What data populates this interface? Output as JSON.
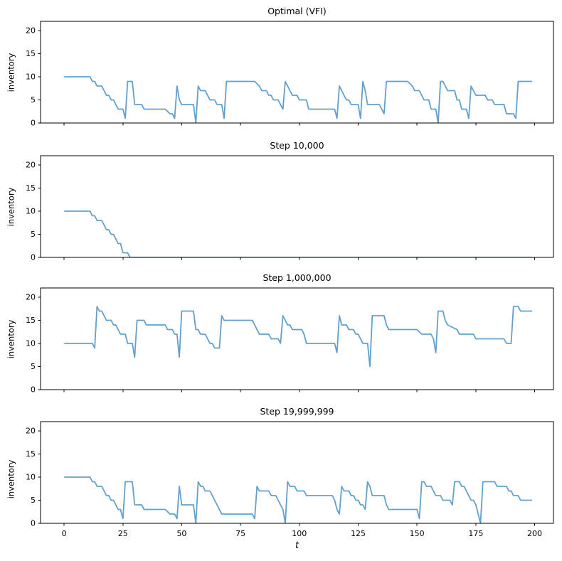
{
  "figure": {
    "background": "#ffffff",
    "line_color": "#62a0cb",
    "spine_color": "#000000",
    "text_color": "#000000",
    "ylabel": "inventory",
    "xlabel": "t"
  },
  "chart_data": [
    {
      "type": "line",
      "title": "Optimal (VFI)",
      "xlabel": "t",
      "ylabel": "inventory",
      "xlim": [
        -10,
        208
      ],
      "ylim": [
        0,
        22
      ],
      "xticks": [
        0,
        25,
        50,
        75,
        100,
        125,
        150,
        175,
        200
      ],
      "yticks": [
        0,
        5,
        10,
        15,
        20
      ],
      "x_tick_labels_visible": false,
      "points": [
        [
          0,
          10
        ],
        [
          11,
          10
        ],
        [
          12,
          9
        ],
        [
          13,
          9
        ],
        [
          14,
          8
        ],
        [
          16,
          8
        ],
        [
          17,
          7
        ],
        [
          18,
          6
        ],
        [
          19,
          6
        ],
        [
          20,
          5
        ],
        [
          21,
          5
        ],
        [
          22,
          4
        ],
        [
          23,
          3
        ],
        [
          25,
          3
        ],
        [
          26,
          1
        ],
        [
          27,
          9
        ],
        [
          29,
          9
        ],
        [
          30,
          4
        ],
        [
          33,
          4
        ],
        [
          34,
          3
        ],
        [
          43,
          3
        ],
        [
          45,
          2
        ],
        [
          46,
          2
        ],
        [
          47,
          1
        ],
        [
          48,
          8
        ],
        [
          49,
          5
        ],
        [
          50,
          4
        ],
        [
          55,
          4
        ],
        [
          56,
          0
        ],
        [
          57,
          8
        ],
        [
          58,
          7
        ],
        [
          60,
          7
        ],
        [
          61,
          6
        ],
        [
          62,
          5
        ],
        [
          64,
          5
        ],
        [
          65,
          4
        ],
        [
          67,
          4
        ],
        [
          68,
          1
        ],
        [
          69,
          9
        ],
        [
          81,
          9
        ],
        [
          83,
          8
        ],
        [
          84,
          7
        ],
        [
          86,
          7
        ],
        [
          87,
          6
        ],
        [
          88,
          6
        ],
        [
          89,
          5
        ],
        [
          91,
          5
        ],
        [
          92,
          4
        ],
        [
          93,
          3
        ],
        [
          94,
          9
        ],
        [
          95,
          8
        ],
        [
          96,
          7
        ],
        [
          97,
          6
        ],
        [
          99,
          6
        ],
        [
          100,
          5
        ],
        [
          103,
          5
        ],
        [
          104,
          3
        ],
        [
          115,
          3
        ],
        [
          116,
          1
        ],
        [
          117,
          8
        ],
        [
          118,
          7
        ],
        [
          119,
          6
        ],
        [
          120,
          5
        ],
        [
          121,
          5
        ],
        [
          122,
          4
        ],
        [
          125,
          4
        ],
        [
          126,
          1
        ],
        [
          127,
          9
        ],
        [
          128,
          7
        ],
        [
          129,
          4
        ],
        [
          134,
          4
        ],
        [
          135,
          3
        ],
        [
          136,
          2
        ],
        [
          137,
          9
        ],
        [
          146,
          9
        ],
        [
          148,
          8
        ],
        [
          149,
          7
        ],
        [
          151,
          7
        ],
        [
          152,
          6
        ],
        [
          153,
          5
        ],
        [
          155,
          5
        ],
        [
          156,
          3
        ],
        [
          158,
          3
        ],
        [
          159,
          0
        ],
        [
          160,
          9
        ],
        [
          161,
          9
        ],
        [
          162,
          8
        ],
        [
          163,
          7
        ],
        [
          166,
          7
        ],
        [
          167,
          5
        ],
        [
          168,
          5
        ],
        [
          169,
          3
        ],
        [
          171,
          3
        ],
        [
          172,
          1
        ],
        [
          173,
          8
        ],
        [
          174,
          7
        ],
        [
          175,
          6
        ],
        [
          179,
          6
        ],
        [
          180,
          5
        ],
        [
          182,
          5
        ],
        [
          183,
          4
        ],
        [
          187,
          4
        ],
        [
          188,
          2
        ],
        [
          191,
          2
        ],
        [
          192,
          1
        ],
        [
          193,
          9
        ],
        [
          199,
          9
        ]
      ]
    },
    {
      "type": "line",
      "title": "Step 10,000",
      "xlabel": "t",
      "ylabel": "inventory",
      "xlim": [
        -10,
        208
      ],
      "ylim": [
        0,
        22
      ],
      "xticks": [
        0,
        25,
        50,
        75,
        100,
        125,
        150,
        175,
        200
      ],
      "yticks": [
        0,
        5,
        10,
        15,
        20
      ],
      "x_tick_labels_visible": false,
      "points": [
        [
          0,
          10
        ],
        [
          11,
          10
        ],
        [
          12,
          9
        ],
        [
          13,
          9
        ],
        [
          14,
          8
        ],
        [
          16,
          8
        ],
        [
          17,
          7
        ],
        [
          18,
          6
        ],
        [
          19,
          6
        ],
        [
          20,
          5
        ],
        [
          21,
          5
        ],
        [
          22,
          4
        ],
        [
          23,
          3
        ],
        [
          24,
          3
        ],
        [
          25,
          1
        ],
        [
          27,
          1
        ],
        [
          28,
          0
        ],
        [
          199,
          0
        ]
      ]
    },
    {
      "type": "line",
      "title": "Step 1,000,000",
      "xlabel": "t",
      "ylabel": "inventory",
      "xlim": [
        -10,
        208
      ],
      "ylim": [
        0,
        22
      ],
      "xticks": [
        0,
        25,
        50,
        75,
        100,
        125,
        150,
        175,
        200
      ],
      "yticks": [
        0,
        5,
        10,
        15,
        20
      ],
      "x_tick_labels_visible": false,
      "points": [
        [
          0,
          10
        ],
        [
          12,
          10
        ],
        [
          13,
          9
        ],
        [
          14,
          18
        ],
        [
          15,
          17
        ],
        [
          16,
          17
        ],
        [
          17,
          16
        ],
        [
          18,
          15
        ],
        [
          20,
          15
        ],
        [
          21,
          14
        ],
        [
          22,
          14
        ],
        [
          23,
          13
        ],
        [
          24,
          12
        ],
        [
          26,
          12
        ],
        [
          27,
          10
        ],
        [
          29,
          10
        ],
        [
          30,
          7
        ],
        [
          31,
          15
        ],
        [
          34,
          15
        ],
        [
          35,
          14
        ],
        [
          43,
          14
        ],
        [
          44,
          13
        ],
        [
          46,
          13
        ],
        [
          47,
          12
        ],
        [
          48,
          12
        ],
        [
          49,
          7
        ],
        [
          50,
          17
        ],
        [
          55,
          17
        ],
        [
          56,
          13
        ],
        [
          57,
          13
        ],
        [
          58,
          12
        ],
        [
          60,
          12
        ],
        [
          61,
          11
        ],
        [
          62,
          10
        ],
        [
          63,
          10
        ],
        [
          64,
          9
        ],
        [
          66,
          9
        ],
        [
          67,
          16
        ],
        [
          68,
          15
        ],
        [
          80,
          15
        ],
        [
          81,
          14
        ],
        [
          82,
          13
        ],
        [
          83,
          12
        ],
        [
          87,
          12
        ],
        [
          88,
          11
        ],
        [
          91,
          11
        ],
        [
          92,
          10
        ],
        [
          93,
          16
        ],
        [
          94,
          15
        ],
        [
          95,
          14
        ],
        [
          96,
          14
        ],
        [
          97,
          13
        ],
        [
          101,
          13
        ],
        [
          102,
          12
        ],
        [
          103,
          10
        ],
        [
          115,
          10
        ],
        [
          116,
          8
        ],
        [
          117,
          16
        ],
        [
          118,
          14
        ],
        [
          120,
          14
        ],
        [
          121,
          13
        ],
        [
          123,
          13
        ],
        [
          124,
          12
        ],
        [
          125,
          12
        ],
        [
          126,
          11
        ],
        [
          127,
          10
        ],
        [
          129,
          10
        ],
        [
          130,
          5
        ],
        [
          131,
          16
        ],
        [
          136,
          16
        ],
        [
          137,
          14
        ],
        [
          138,
          13
        ],
        [
          150,
          13
        ],
        [
          152,
          12
        ],
        [
          156,
          12
        ],
        [
          157,
          11
        ],
        [
          158,
          8
        ],
        [
          159,
          17
        ],
        [
          161,
          17
        ],
        [
          162,
          15
        ],
        [
          163,
          14
        ],
        [
          167,
          13
        ],
        [
          168,
          12
        ],
        [
          174,
          12
        ],
        [
          175,
          11
        ],
        [
          187,
          11
        ],
        [
          188,
          10
        ],
        [
          190,
          10
        ],
        [
          191,
          18
        ],
        [
          193,
          18
        ],
        [
          194,
          17
        ],
        [
          199,
          17
        ]
      ]
    },
    {
      "type": "line",
      "title": "Step 19,999,999",
      "xlabel": "t",
      "ylabel": "inventory",
      "xlim": [
        -10,
        208
      ],
      "ylim": [
        0,
        22
      ],
      "xticks": [
        0,
        25,
        50,
        75,
        100,
        125,
        150,
        175,
        200
      ],
      "yticks": [
        0,
        5,
        10,
        15,
        20
      ],
      "x_tick_labels_visible": true,
      "points": [
        [
          0,
          10
        ],
        [
          11,
          10
        ],
        [
          12,
          9
        ],
        [
          13,
          9
        ],
        [
          14,
          8
        ],
        [
          16,
          8
        ],
        [
          17,
          7
        ],
        [
          18,
          6
        ],
        [
          19,
          6
        ],
        [
          20,
          5
        ],
        [
          21,
          5
        ],
        [
          22,
          4
        ],
        [
          23,
          3
        ],
        [
          24,
          3
        ],
        [
          25,
          1
        ],
        [
          26,
          9
        ],
        [
          29,
          9
        ],
        [
          30,
          4
        ],
        [
          33,
          4
        ],
        [
          34,
          3
        ],
        [
          43,
          3
        ],
        [
          45,
          2
        ],
        [
          47,
          2
        ],
        [
          48,
          1
        ],
        [
          49,
          8
        ],
        [
          50,
          4
        ],
        [
          55,
          4
        ],
        [
          56,
          0
        ],
        [
          57,
          9
        ],
        [
          58,
          8
        ],
        [
          59,
          8
        ],
        [
          60,
          7
        ],
        [
          62,
          7
        ],
        [
          63,
          6
        ],
        [
          64,
          5
        ],
        [
          65,
          4
        ],
        [
          66,
          3
        ],
        [
          67,
          2
        ],
        [
          80,
          2
        ],
        [
          81,
          1
        ],
        [
          82,
          8
        ],
        [
          83,
          7
        ],
        [
          87,
          7
        ],
        [
          88,
          6
        ],
        [
          90,
          6
        ],
        [
          91,
          5
        ],
        [
          92,
          4
        ],
        [
          93,
          3
        ],
        [
          94,
          0
        ],
        [
          95,
          9
        ],
        [
          96,
          8
        ],
        [
          98,
          8
        ],
        [
          99,
          7
        ],
        [
          102,
          7
        ],
        [
          103,
          6
        ],
        [
          114,
          6
        ],
        [
          115,
          5
        ],
        [
          116,
          3
        ],
        [
          117,
          2
        ],
        [
          118,
          8
        ],
        [
          119,
          7
        ],
        [
          121,
          7
        ],
        [
          122,
          6
        ],
        [
          123,
          6
        ],
        [
          124,
          5
        ],
        [
          125,
          5
        ],
        [
          126,
          4
        ],
        [
          127,
          4
        ],
        [
          128,
          3
        ],
        [
          129,
          9
        ],
        [
          130,
          8
        ],
        [
          131,
          6
        ],
        [
          136,
          6
        ],
        [
          137,
          4
        ],
        [
          138,
          3
        ],
        [
          150,
          3
        ],
        [
          151,
          1
        ],
        [
          152,
          9
        ],
        [
          153,
          9
        ],
        [
          154,
          8
        ],
        [
          156,
          8
        ],
        [
          157,
          7
        ],
        [
          158,
          6
        ],
        [
          160,
          6
        ],
        [
          161,
          5
        ],
        [
          164,
          5
        ],
        [
          165,
          4
        ],
        [
          166,
          9
        ],
        [
          168,
          9
        ],
        [
          169,
          8
        ],
        [
          170,
          8
        ],
        [
          171,
          7
        ],
        [
          172,
          6
        ],
        [
          173,
          5
        ],
        [
          174,
          5
        ],
        [
          175,
          4
        ],
        [
          176,
          2
        ],
        [
          177,
          0
        ],
        [
          178,
          9
        ],
        [
          183,
          9
        ],
        [
          184,
          8
        ],
        [
          188,
          8
        ],
        [
          189,
          7
        ],
        [
          190,
          7
        ],
        [
          191,
          6
        ],
        [
          193,
          6
        ],
        [
          194,
          5
        ],
        [
          199,
          5
        ]
      ]
    }
  ]
}
